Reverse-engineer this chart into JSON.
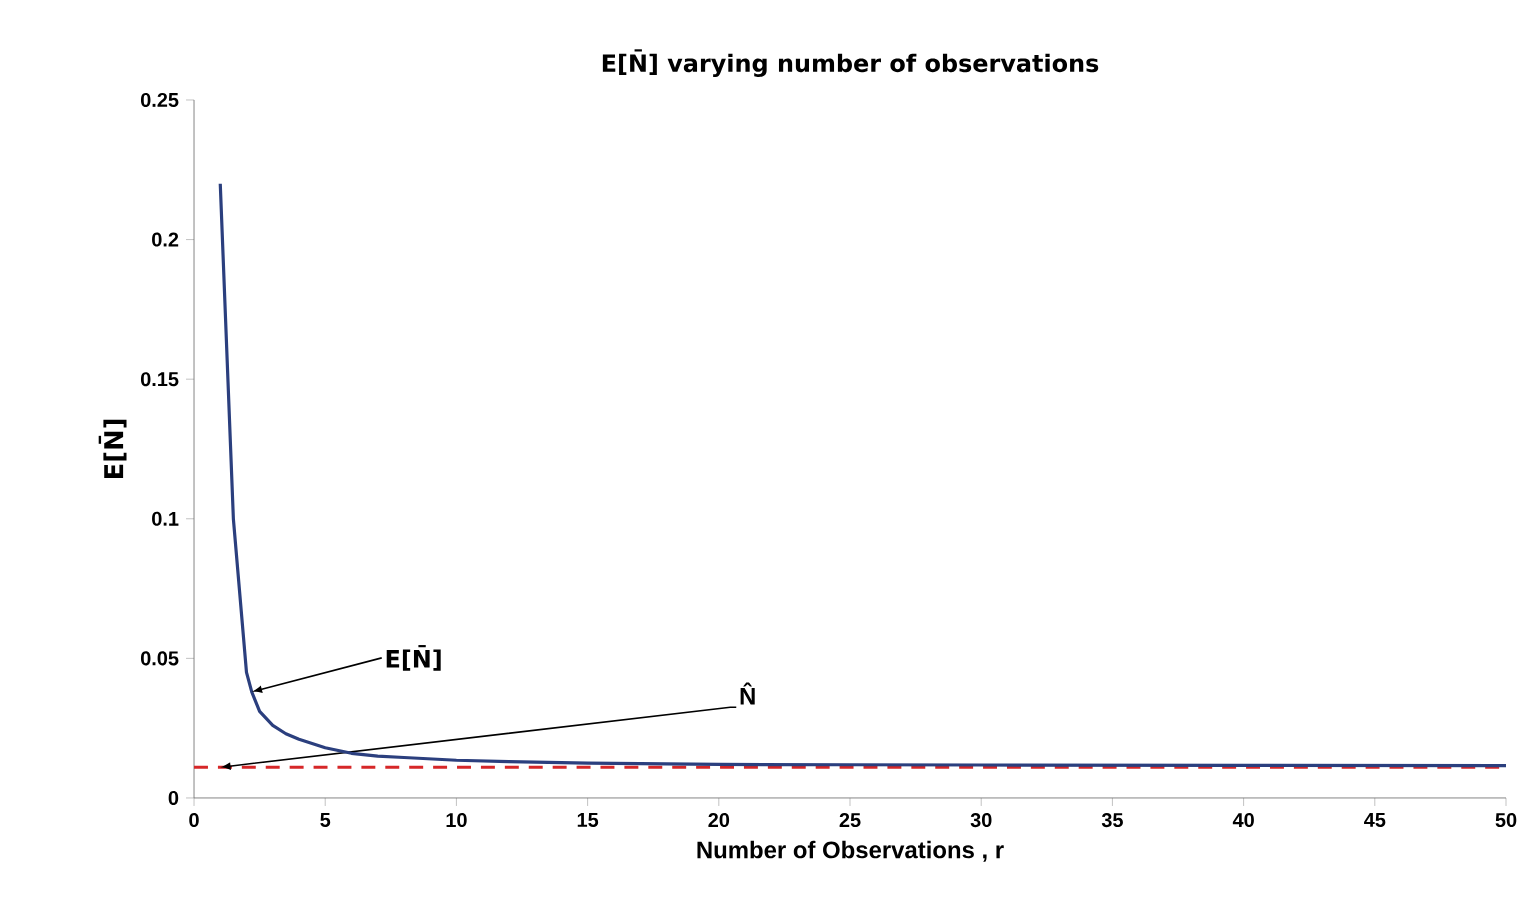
{
  "chart_data": {
    "type": "line",
    "title": "E[N̄] varying number of observations",
    "xlabel": "Number of Observations , r",
    "ylabel": "E[N̄]",
    "x": [
      1,
      1.5,
      2,
      2.2,
      2.5,
      3,
      3.5,
      4,
      5,
      6,
      7,
      8,
      10,
      12,
      15,
      20,
      25,
      30,
      40,
      50
    ],
    "series": [
      {
        "color": "#2b3f7e",
        "values": [
          0.22,
          0.1,
          0.045,
          0.038,
          0.031,
          0.026,
          0.023,
          0.021,
          0.018,
          0.016,
          0.015,
          0.0145,
          0.0135,
          0.013,
          0.0125,
          0.012,
          0.0119,
          0.0118,
          0.0117,
          0.0116
        ]
      }
    ],
    "xlim": [
      0,
      50
    ],
    "ylim": [
      0,
      0.25
    ],
    "xticks": [
      0,
      5,
      10,
      15,
      20,
      25,
      30,
      35,
      40,
      45,
      50
    ],
    "yticks": [
      0,
      0.05,
      0.1,
      0.15,
      0.2,
      0.25
    ],
    "ref_lines": [
      {
        "axis": "y",
        "value": 0.011,
        "label": "N̂",
        "color": "#d62728",
        "line_style": "dashed"
      }
    ],
    "annotations": [
      {
        "text": "E[N̄]",
        "x": 2.2,
        "y": 0.038
      }
    ],
    "grid": false,
    "marker": "none",
    "line_style": "solid"
  }
}
